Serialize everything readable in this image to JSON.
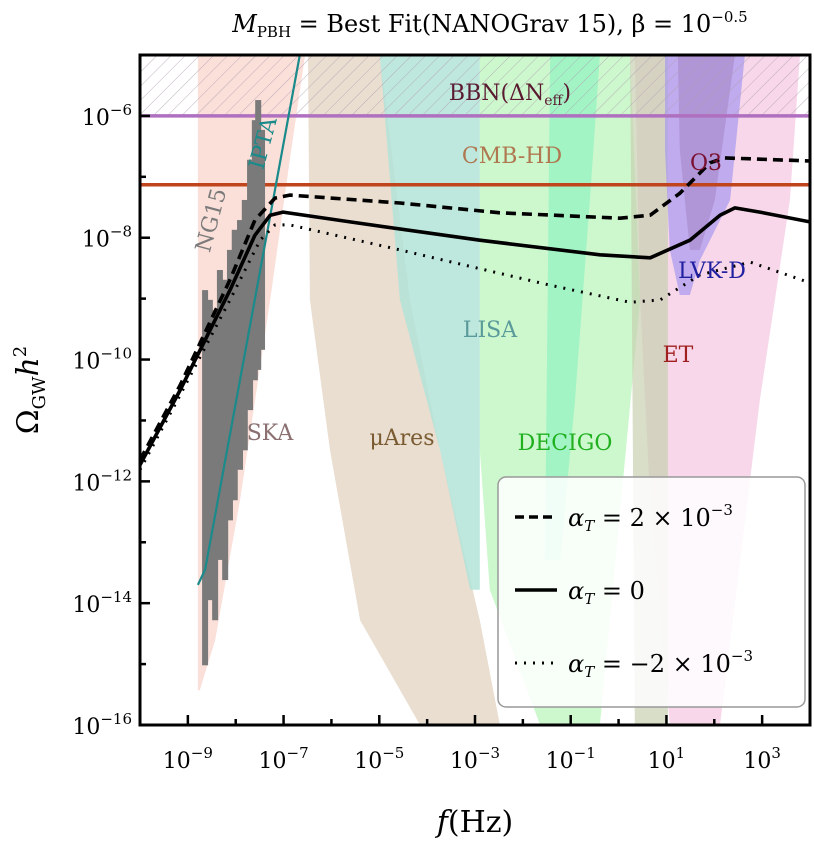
{
  "chart_data": {
    "type": "line",
    "title": {
      "m": "M",
      "m_sub": "PBH",
      "eq": " = Best Fit(NANOGrav 15), β = 10",
      "exp": "−0.5"
    },
    "xlabel": {
      "var": "f",
      "unit": "(Hz)"
    },
    "ylabel": {
      "var": "Ω",
      "sub": "GW",
      "rest": "h",
      "sup": "2"
    },
    "x_scale": "log",
    "y_scale": "log",
    "xlim": [
      1e-10,
      10000.0
    ],
    "ylim": [
      1e-16,
      1e-05
    ],
    "x_tick_exponents": [
      -9,
      -7,
      -5,
      -3,
      -1,
      1,
      3
    ],
    "y_tick_exponents": [
      -6,
      -8,
      -10,
      -12,
      -14,
      -16
    ],
    "note": "curve and region points are given as [log10 f(Hz), log10 Ω_GW h²]",
    "series": [
      {
        "name": "α_T = 2 × 10^{-3}",
        "style": "dashed",
        "color": "#000000",
        "points": [
          [
            -10,
            -11.65
          ],
          [
            -9.16,
            -10.42
          ],
          [
            -8.12,
            -8.69
          ],
          [
            -7.6,
            -7.71
          ],
          [
            -7.18,
            -7.35
          ],
          [
            -6.87,
            -7.3
          ],
          [
            -4.57,
            -7.43
          ],
          [
            -2.48,
            -7.59
          ],
          [
            0.03,
            -7.68
          ],
          [
            0.66,
            -7.63
          ],
          [
            1.28,
            -7.27
          ],
          [
            1.91,
            -6.77
          ],
          [
            2.22,
            -6.69
          ],
          [
            4,
            -6.74
          ]
        ]
      },
      {
        "name": "α_T = 0",
        "style": "solid",
        "color": "#000000",
        "points": [
          [
            -10,
            -11.73
          ],
          [
            -9.16,
            -10.5
          ],
          [
            -8.12,
            -8.86
          ],
          [
            -7.6,
            -7.96
          ],
          [
            -7.28,
            -7.63
          ],
          [
            -7.01,
            -7.58
          ],
          [
            -5.61,
            -7.74
          ],
          [
            -2.9,
            -8.04
          ],
          [
            -0.39,
            -8.28
          ],
          [
            0.66,
            -8.33
          ],
          [
            1.49,
            -8.04
          ],
          [
            2.12,
            -7.63
          ],
          [
            2.43,
            -7.51
          ],
          [
            2.95,
            -7.58
          ],
          [
            4,
            -7.74
          ]
        ]
      },
      {
        "name": "α_T = −2 × 10^{-3}",
        "style": "dotted",
        "color": "#000000",
        "points": [
          [
            -10,
            -11.81
          ],
          [
            -9.16,
            -10.58
          ],
          [
            -8.12,
            -9.02
          ],
          [
            -7.49,
            -8.04
          ],
          [
            -7.18,
            -7.79
          ],
          [
            -6.87,
            -7.79
          ],
          [
            -4.57,
            -8.2
          ],
          [
            -1.43,
            -8.78
          ],
          [
            0.24,
            -9.06
          ],
          [
            0.87,
            -9.02
          ],
          [
            1.7,
            -8.61
          ],
          [
            2.75,
            -8.4
          ],
          [
            4,
            -8.74
          ]
        ]
      }
    ],
    "legend": {
      "placement": "lower-right",
      "entries": [
        {
          "style": "dashed",
          "var": "α",
          "sub": "T",
          "eq": " = 2 × 10",
          "exp": "−3"
        },
        {
          "style": "solid",
          "var": "α",
          "sub": "T",
          "eq": " = 0",
          "exp": ""
        },
        {
          "style": "dotted",
          "var": "α",
          "sub": "T",
          "eq": " = −2 × 10",
          "exp": "−3"
        }
      ]
    },
    "bounds": [
      {
        "label": "BBN(ΔN",
        "label_sub": "eff",
        "label_end": ")",
        "log_omega": -6.0,
        "color": "#b070c0",
        "hatched_above": true,
        "text_color": "#5a1a30"
      },
      {
        "label": "CMB-HD",
        "log_omega": -7.13,
        "color": "#c0441c",
        "text_color": "#b07850"
      }
    ],
    "regions": [
      {
        "label": "SKA",
        "color": "#f9c9c0",
        "opacity": 0.6,
        "text_color": "#8a7070",
        "points": [
          [
            -8.79,
            -5
          ],
          [
            -6.55,
            -5
          ],
          [
            -6.87,
            -6.72
          ],
          [
            -7.28,
            -9.02
          ],
          [
            -7.91,
            -12.31
          ],
          [
            -8.43,
            -14.61
          ],
          [
            -8.75,
            -15.43
          ],
          [
            -8.79,
            -15.43
          ]
        ]
      },
      {
        "label": "μAres",
        "color": "#e5d8c8",
        "opacity": 0.85,
        "text_color": "#7a5a30",
        "points": [
          [
            -6.49,
            -5
          ],
          [
            -4.99,
            -5
          ],
          [
            -4.36,
            -9.02
          ],
          [
            -3.73,
            -11.49
          ],
          [
            -2.9,
            -14.28
          ],
          [
            -2.48,
            -16
          ],
          [
            -4.15,
            -16
          ],
          [
            -5.4,
            -14.28
          ],
          [
            -6.03,
            -11.49
          ],
          [
            -6.45,
            -9.02
          ]
        ]
      },
      {
        "label": "LISA",
        "color": "#b3e3d8",
        "opacity": 0.85,
        "text_color": "#5a9a9a",
        "points": [
          [
            -4.99,
            -5
          ],
          [
            -2.9,
            -5
          ],
          [
            -2.9,
            -13.78
          ],
          [
            -3.1,
            -13.78
          ],
          [
            -3.73,
            -11.49
          ],
          [
            -4.57,
            -9.02
          ]
        ]
      },
      {
        "label": "DECIGO",
        "color": "#b8f5b8",
        "opacity": 0.7,
        "text_color": "#20b020",
        "points": [
          [
            -2.9,
            -5
          ],
          [
            0.24,
            -5
          ],
          [
            0.45,
            -9.02
          ],
          [
            -0.39,
            -16
          ],
          [
            -1.64,
            -16
          ],
          [
            -2.69,
            -13.78
          ],
          [
            -2.9,
            -11.49
          ]
        ]
      },
      {
        "label": "",
        "color": "#80f0c0",
        "opacity": 0.55,
        "points": [
          [
            -1.43,
            -5
          ],
          [
            -0.39,
            -5
          ],
          [
            -0.6,
            -7.38
          ],
          [
            -0.91,
            -10.67
          ],
          [
            -1.22,
            -13.29
          ],
          [
            -1.54,
            -13.29
          ]
        ]
      },
      {
        "label": "ET",
        "color": "#f3c6df",
        "opacity": 0.7,
        "text_color": "#a02020",
        "points": [
          [
            0.34,
            -5
          ],
          [
            3.79,
            -5
          ],
          [
            3.58,
            -7.38
          ],
          [
            2.95,
            -10.67
          ],
          [
            2.12,
            -16
          ],
          [
            1.07,
            -16
          ],
          [
            0.66,
            -12.31
          ],
          [
            0.45,
            -9.02
          ]
        ]
      },
      {
        "label": "",
        "color": "#c8d0b0",
        "opacity": 0.7,
        "points": [
          [
            0.24,
            -5
          ],
          [
            1.03,
            -5
          ],
          [
            1.03,
            -16
          ],
          [
            0.34,
            -16
          ]
        ]
      },
      {
        "label": "LVK-D",
        "color": "#a898f0",
        "opacity": 0.7,
        "text_color": "#2020a0",
        "points": [
          [
            0.97,
            -5
          ],
          [
            2.64,
            -5
          ],
          [
            2.33,
            -7.38
          ],
          [
            1.7,
            -8.37
          ],
          [
            1.49,
            -8.94
          ],
          [
            1.28,
            -8.94
          ],
          [
            1.07,
            -8.2
          ],
          [
            0.97,
            -6.56
          ]
        ]
      },
      {
        "label": "O3",
        "color": "#a080c0",
        "opacity": 0.5,
        "text_color": "#7a1030",
        "points": [
          [
            1.24,
            -5
          ],
          [
            2.43,
            -5
          ],
          [
            2.01,
            -7.38
          ],
          [
            1.7,
            -8.2
          ],
          [
            1.49,
            -8.2
          ],
          [
            1.28,
            -6.56
          ]
        ]
      }
    ],
    "ipta": {
      "label": "IPTA",
      "color": "#1a8a8a",
      "points": [
        [
          -8.79,
          -13.7
        ],
        [
          -8.64,
          -13.45
        ],
        [
          -6.66,
          -5
        ]
      ]
    },
    "ng15": {
      "label": "NG15",
      "color": "#7a7a7a",
      "violins": [
        [
          -8.64,
          -8.86,
          -15.02
        ],
        [
          -8.54,
          -9.02,
          -13.95
        ],
        [
          -8.43,
          -9.19,
          -14.28
        ],
        [
          -8.33,
          -8.53,
          -13.29
        ],
        [
          -8.22,
          -8.69,
          -13.62
        ],
        [
          -8.12,
          -8.2,
          -12.64
        ],
        [
          -8.02,
          -7.87,
          -12.31
        ],
        [
          -7.91,
          -7.71,
          -11.81
        ],
        [
          -7.81,
          -7.38,
          -11.49
        ],
        [
          -7.7,
          -6.72,
          -10.83
        ],
        [
          -7.6,
          -6.07,
          -10.34
        ],
        [
          -7.53,
          -5.74,
          -10.17
        ],
        [
          -7.45,
          -6.23,
          -9.84
        ]
      ]
    }
  }
}
